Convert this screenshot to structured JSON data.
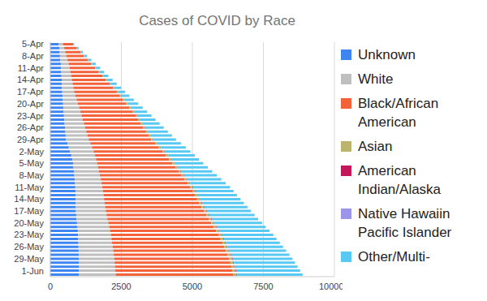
{
  "chart_data": {
    "type": "bar",
    "title": "Cases of COVID by Race",
    "orientation": "horizontal",
    "stacked": true,
    "grid": true,
    "legend": "right",
    "categories": [
      "5-Apr",
      null,
      null,
      "8-Apr",
      null,
      null,
      "11-Apr",
      null,
      null,
      "14-Apr",
      null,
      null,
      "17-Apr",
      null,
      null,
      "20-Apr",
      null,
      null,
      "23-Apr",
      null,
      null,
      "26-Apr",
      null,
      null,
      "29-Apr",
      null,
      null,
      "2-May",
      null,
      null,
      "5-May",
      null,
      null,
      "8-May",
      null,
      null,
      "11-May",
      null,
      null,
      "14-May",
      null,
      null,
      "17-May",
      null,
      null,
      "20-May",
      null,
      null,
      "23-May",
      null,
      null,
      "26-May",
      null,
      null,
      "29-May",
      null,
      null,
      "1-Jun",
      null
    ],
    "xlim": [
      0,
      10000
    ],
    "xticks": [
      0,
      2500,
      5000,
      7500,
      10000
    ],
    "series": [
      {
        "name": "Unknown",
        "color": "#3d85f0",
        "values": [
          300,
          315,
          330,
          340,
          355,
          370,
          380,
          385,
          392,
          400,
          405,
          412,
          420,
          428,
          440,
          450,
          462,
          470,
          480,
          490,
          502,
          515,
          528,
          540,
          550,
          600,
          650,
          700,
          740,
          770,
          800,
          815,
          830,
          845,
          860,
          870,
          880,
          885,
          888,
          892,
          895,
          898,
          900,
          912,
          925,
          940,
          955,
          968,
          980,
          985,
          990,
          994,
          997,
          999,
          1000,
          1000,
          1000,
          1000,
          1000
        ]
      },
      {
        "name": "White",
        "color": "#bfbfbf",
        "values": [
          150,
          175,
          200,
          225,
          250,
          275,
          300,
          320,
          340,
          360,
          380,
          400,
          420,
          455,
          490,
          520,
          555,
          590,
          620,
          650,
          680,
          710,
          740,
          770,
          800,
          810,
          818,
          826,
          834,
          842,
          850,
          866,
          883,
          900,
          916,
          933,
          950,
          966,
          983,
          1000,
          1016,
          1033,
          1050,
          1066,
          1083,
          1100,
          1116,
          1133,
          1150,
          1166,
          1183,
          1200,
          1216,
          1233,
          1250,
          1262,
          1275,
          1288,
          1300
        ]
      },
      {
        "name": "Black/African American",
        "color": "#f4623a",
        "values": [
          350,
          440,
          530,
          620,
          710,
          800,
          900,
          1000,
          1100,
          1200,
          1300,
          1400,
          1500,
          1565,
          1630,
          1700,
          1765,
          1830,
          1900,
          1950,
          2000,
          2050,
          2100,
          2150,
          2200,
          2275,
          2350,
          2425,
          2500,
          2575,
          2650,
          2725,
          2800,
          2875,
          2950,
          3025,
          3100,
          3160,
          3215,
          3275,
          3330,
          3390,
          3450,
          3510,
          3565,
          3625,
          3680,
          3740,
          3800,
          3840,
          3885,
          3925,
          3965,
          4010,
          4050,
          4075,
          4100,
          4125,
          4150
        ]
      },
      {
        "name": "Asian",
        "color": "#bcb46d",
        "values": [
          10,
          12,
          13,
          15,
          17,
          18,
          20,
          22,
          25,
          27,
          30,
          32,
          35,
          37,
          40,
          42,
          45,
          47,
          50,
          52,
          53,
          55,
          57,
          58,
          60,
          62,
          63,
          65,
          67,
          68,
          70,
          72,
          73,
          75,
          77,
          78,
          80,
          82,
          83,
          85,
          87,
          88,
          90,
          91,
          92,
          92,
          93,
          94,
          95,
          96,
          97,
          98,
          99,
          99,
          100,
          101,
          102,
          104,
          105
        ]
      },
      {
        "name": "American Indian/Alaska",
        "color": "#c2185b",
        "values": [
          2,
          2,
          3,
          3,
          3,
          4,
          4,
          4,
          5,
          5,
          5,
          6,
          6,
          6,
          7,
          7,
          7,
          8,
          8,
          8,
          9,
          9,
          9,
          10,
          10,
          10,
          11,
          11,
          11,
          12,
          12,
          12,
          13,
          13,
          14,
          14,
          15,
          15,
          15,
          16,
          16,
          16,
          17,
          17,
          17,
          18,
          18,
          18,
          19,
          19,
          19,
          19,
          20,
          20,
          20,
          20,
          20,
          21,
          21
        ]
      },
      {
        "name": "Native Hawaiin Pacific Islander",
        "color": "#9c94e8",
        "values": [
          1,
          1,
          1,
          1,
          1,
          1,
          1,
          1,
          1,
          1,
          1,
          1,
          2,
          2,
          2,
          2,
          2,
          2,
          2,
          2,
          2,
          2,
          2,
          2,
          3,
          3,
          3,
          3,
          3,
          3,
          3,
          3,
          3,
          3,
          3,
          3,
          4,
          4,
          4,
          4,
          4,
          4,
          4,
          4,
          4,
          4,
          4,
          4,
          5,
          5,
          5,
          5,
          5,
          5,
          5,
          5,
          5,
          5,
          5
        ]
      },
      {
        "name": "Other/Multi-",
        "color": "#58c9f2",
        "values": [
          30,
          50,
          70,
          90,
          110,
          130,
          150,
          165,
          180,
          200,
          215,
          235,
          250,
          290,
          330,
          375,
          415,
          460,
          500,
          550,
          600,
          650,
          700,
          750,
          800,
          835,
          870,
          900,
          935,
          965,
          1000,
          1050,
          1100,
          1150,
          1200,
          1250,
          1300,
          1340,
          1380,
          1425,
          1465,
          1510,
          1550,
          1590,
          1630,
          1675,
          1715,
          1760,
          1800,
          1850,
          1900,
          1950,
          2000,
          2050,
          2100,
          2150,
          2200,
          2250,
          2300
        ]
      }
    ]
  }
}
